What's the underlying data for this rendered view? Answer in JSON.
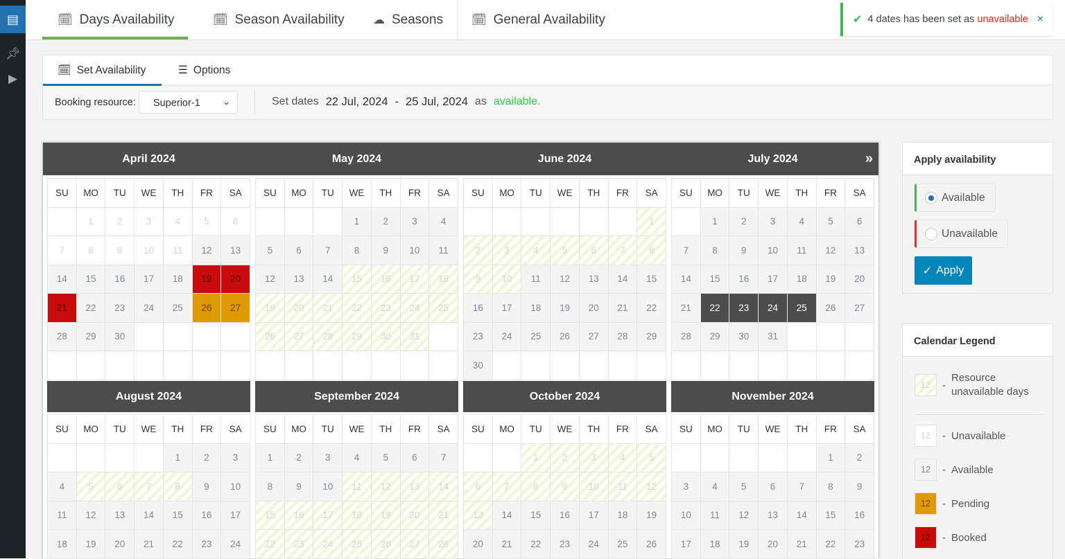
{
  "topbar": {
    "tabs": [
      {
        "label": "Days Availability",
        "icon": "calendar-check-icon"
      },
      {
        "label": "Season Availability",
        "icon": "calendar-dots-icon"
      },
      {
        "label": "Seasons",
        "icon": "cloud-icon"
      },
      {
        "label": "General Availability",
        "icon": "calendar-fri-icon"
      }
    ],
    "active_tab": "Days Availability"
  },
  "notice": {
    "text": "4 dates has been set as",
    "status": "unavailable",
    "close": "×"
  },
  "panel": {
    "tabs": [
      {
        "label": "Set Availability"
      },
      {
        "label": "Options"
      }
    ],
    "resource_label": "Booking resource:",
    "resource_value": "Superior-1",
    "set_dates": "Set dates",
    "date_from": "22 Jul, 2024",
    "dash": "-",
    "date_to": "25 Jul, 2024",
    "as": "as",
    "status": "available."
  },
  "calendar": {
    "next": "»",
    "weekdays": [
      "SU",
      "MO",
      "TU",
      "WE",
      "TH",
      "FR",
      "SA"
    ],
    "months": [
      {
        "title": "April 2024",
        "offset": 1,
        "days": 30,
        "states": {
          "unavailable": [
            [
              1,
              11
            ]
          ],
          "booked": [
            [
              19,
              21
            ]
          ],
          "pending": [
            [
              26,
              27
            ]
          ]
        }
      },
      {
        "title": "May 2024",
        "offset": 3,
        "days": 31,
        "states": {
          "resource": [
            [
              15,
              31
            ]
          ]
        }
      },
      {
        "title": "June 2024",
        "offset": 6,
        "days": 30,
        "states": {
          "resource": [
            [
              1,
              10
            ]
          ]
        }
      },
      {
        "title": "July 2024",
        "offset": 1,
        "days": 31,
        "states": {
          "selected": [
            [
              22,
              25
            ]
          ]
        }
      },
      {
        "title": "August 2024",
        "offset": 4,
        "days": 31,
        "states": {
          "resource": [
            [
              5,
              8
            ]
          ]
        }
      },
      {
        "title": "September 2024",
        "offset": 0,
        "days": 30,
        "states": {
          "resource": [
            [
              11,
              28
            ]
          ]
        }
      },
      {
        "title": "October 2024",
        "offset": 2,
        "days": 31,
        "states": {
          "resource": [
            [
              1,
              13
            ]
          ]
        }
      },
      {
        "title": "November 2024",
        "offset": 5,
        "days": 30,
        "states": {}
      }
    ]
  },
  "apply": {
    "title": "Apply availability",
    "options": [
      {
        "label": "Available",
        "checked": true
      },
      {
        "label": "Unavailable",
        "checked": false
      }
    ],
    "button": "Apply"
  },
  "legend": {
    "title": "Calendar Legend",
    "sample": "12",
    "items": [
      {
        "dash": "-",
        "label": "Resource unavailable days",
        "state": "resource"
      },
      {
        "dash": "-",
        "label": "Unavailable",
        "state": "unavailable"
      },
      {
        "dash": "-",
        "label": "Available",
        "state": "available"
      },
      {
        "dash": "-",
        "label": "Pending",
        "state": "pending"
      },
      {
        "dash": "-",
        "label": "Booked",
        "state": "booked"
      }
    ]
  },
  "colors": {
    "booked": "#c80c0c",
    "pending": "#e09a00",
    "selected": "#4c4c4c",
    "accent": "#2271b1",
    "apply": "#0085ba",
    "success": "#46b450"
  }
}
